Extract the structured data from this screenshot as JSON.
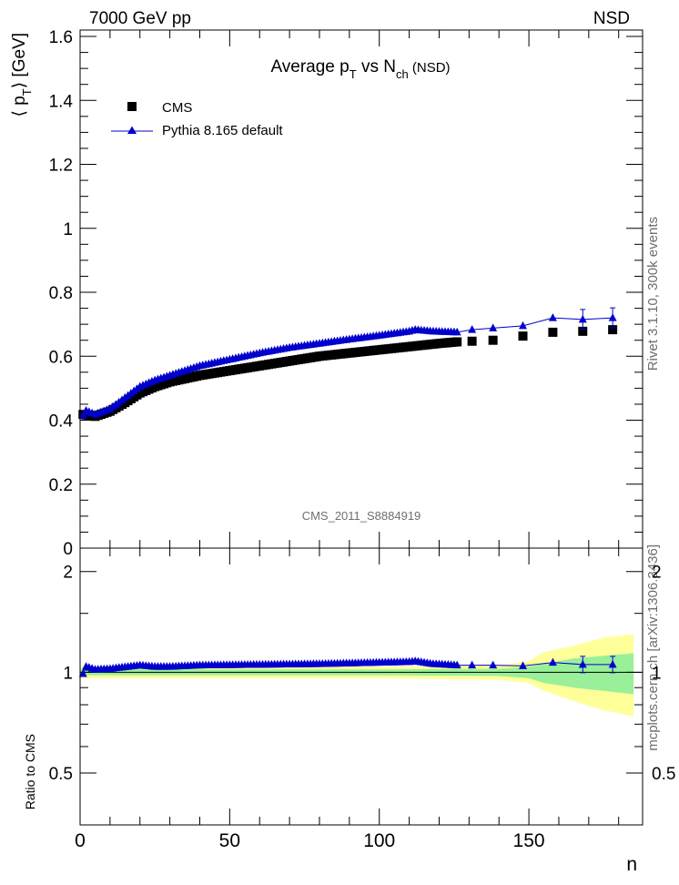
{
  "header": {
    "left": "7000 GeV pp",
    "right": "NSD"
  },
  "side_text": {
    "rivet": "Rivet 3.1.10,  300k events",
    "mcplots": "mcplots.cern.ch [arXiv:1306.3436]"
  },
  "chart_data": [
    {
      "type": "scatter",
      "title": "Average p_T vs N_ch (NSD)",
      "title_parts": {
        "p": "Average p",
        "sub1": "T",
        "vs": " vs N",
        "sub2": "ch",
        "suffix": " (NSD)"
      },
      "ylabel": "⟨ p_T ⟩ [GeV]",
      "ylabel_parts": {
        "open": "⟨ p",
        "sub": "T",
        "close": "⟩ [GeV]"
      },
      "watermark": "CMS_2011_S8884919",
      "xlim": [
        0,
        188
      ],
      "ylim": [
        0,
        1.62
      ],
      "yticks": [
        0,
        0.2,
        0.4,
        0.6,
        0.8,
        1,
        1.2,
        1.4,
        1.6
      ],
      "ytick_labels": [
        "0",
        "0.2",
        "0.4",
        "0.6",
        "0.8",
        "1",
        "1.2",
        "1.4",
        "1.6"
      ],
      "legend_placement": "top-left",
      "series": [
        {
          "name": "CMS",
          "marker": "square",
          "color": "#000000",
          "anchors": [
            [
              1,
              0.418
            ],
            [
              5,
              0.412
            ],
            [
              10,
              0.428
            ],
            [
              15,
              0.455
            ],
            [
              20,
              0.485
            ],
            [
              25,
              0.505
            ],
            [
              30,
              0.52
            ],
            [
              40,
              0.54
            ],
            [
              50,
              0.555
            ],
            [
              60,
              0.57
            ],
            [
              70,
              0.585
            ],
            [
              80,
              0.6
            ],
            [
              90,
              0.61
            ],
            [
              100,
              0.62
            ],
            [
              110,
              0.63
            ],
            [
              120,
              0.64
            ],
            [
              126,
              0.645
            ]
          ],
          "range": [
            1,
            126
          ],
          "sparse_x": [
            131,
            138,
            148,
            158,
            168,
            178
          ],
          "sparse_y": [
            0.647,
            0.65,
            0.663,
            0.675,
            0.678,
            0.683
          ]
        },
        {
          "name": "Pythia 8.165 default",
          "marker": "triangle",
          "color": "#0000cc",
          "anchors": [
            [
              1,
              0.415
            ],
            [
              2,
              0.43
            ],
            [
              5,
              0.418
            ],
            [
              10,
              0.435
            ],
            [
              15,
              0.47
            ],
            [
              20,
              0.505
            ],
            [
              25,
              0.525
            ],
            [
              30,
              0.54
            ],
            [
              40,
              0.57
            ],
            [
              50,
              0.59
            ],
            [
              60,
              0.61
            ],
            [
              70,
              0.627
            ],
            [
              80,
              0.64
            ],
            [
              90,
              0.653
            ],
            [
              100,
              0.665
            ],
            [
              110,
              0.678
            ],
            [
              112,
              0.683
            ],
            [
              118,
              0.678
            ],
            [
              126,
              0.675
            ]
          ],
          "range": [
            1,
            126
          ],
          "sparse_x": [
            131,
            138,
            148,
            158,
            168,
            178
          ],
          "sparse_y": [
            0.683,
            0.688,
            0.695,
            0.72,
            0.715,
            0.72
          ]
        }
      ]
    },
    {
      "type": "scatter",
      "xlabel": "n",
      "ylabel": "Ratio to CMS",
      "xlim": [
        0,
        188
      ],
      "ylim": [
        0.35,
        2.35
      ],
      "xticks": [
        0,
        50,
        100,
        150
      ],
      "xtick_labels": [
        "0",
        "50",
        "100",
        "150"
      ],
      "yticks": [
        0.5,
        1,
        2
      ],
      "ytick_labels": [
        "0.5",
        "1",
        "2"
      ],
      "ratio_anchors": [
        [
          1,
          0.99
        ],
        [
          2,
          1.04
        ],
        [
          5,
          1.02
        ],
        [
          10,
          1.025
        ],
        [
          20,
          1.05
        ],
        [
          25,
          1.04
        ],
        [
          30,
          1.04
        ],
        [
          40,
          1.05
        ],
        [
          60,
          1.055
        ],
        [
          80,
          1.06
        ],
        [
          100,
          1.07
        ],
        [
          110,
          1.075
        ],
        [
          112,
          1.08
        ],
        [
          118,
          1.06
        ],
        [
          126,
          1.05
        ]
      ],
      "ratio_range": [
        1,
        126
      ],
      "ratio_sparse_x": [
        131,
        138,
        148,
        158,
        168,
        178
      ],
      "ratio_sparse_y": [
        1.05,
        1.05,
        1.045,
        1.07,
        1.055,
        1.055
      ],
      "band_green": [
        [
          0,
          0.98,
          1.02
        ],
        [
          100,
          0.98,
          1.02
        ],
        [
          140,
          0.975,
          1.025
        ],
        [
          150,
          0.96,
          1.04
        ],
        [
          155,
          0.93,
          1.06
        ],
        [
          165,
          0.9,
          1.1
        ],
        [
          175,
          0.88,
          1.12
        ],
        [
          185,
          0.86,
          1.14
        ]
      ],
      "band_yellow": [
        [
          0,
          0.96,
          1.04
        ],
        [
          100,
          0.96,
          1.04
        ],
        [
          140,
          0.95,
          1.05
        ],
        [
          150,
          0.93,
          1.08
        ],
        [
          155,
          0.88,
          1.15
        ],
        [
          165,
          0.82,
          1.2
        ],
        [
          175,
          0.77,
          1.27
        ],
        [
          185,
          0.74,
          1.3
        ]
      ]
    }
  ]
}
